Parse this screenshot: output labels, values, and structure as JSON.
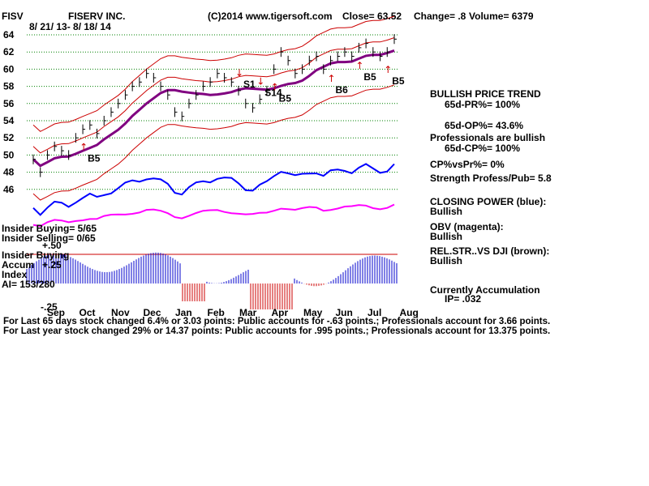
{
  "header": {
    "ticker": "FISV",
    "company": "FISERV INC.",
    "dates": "8/ 21/ 13- 8/ 18/ 14",
    "copyright": "(C)2014 www.tigersoft.com",
    "close": "Close=  63.52",
    "change": "Change= .8",
    "volume": "Volume= 6379"
  },
  "right_panel": {
    "trend_title": "BULLISH PRICE TREND",
    "pr": "65d-PR%= 100%",
    "op": "65d-OP%= 43.6%",
    "pros": "Professionals are bullish",
    "cp": "65d-CP%= 100%",
    "cpvspr": "CP%vsPr%=  0%",
    "strength": "Strength Profess/Pub= 5.8",
    "closing_power": "CLOSING POWER (blue):",
    "closing_power_val": "Bullish",
    "obv": "OBV (magenta):",
    "obv_val": "Bullish",
    "relstr": "REL.STR..VS DJI (brown):",
    "relstr_val": "Bullish",
    "accum": "Currently Accumulation",
    "ip": "IP=  .032"
  },
  "left_labels": {
    "insider_buying": "Insider Buying= 5/65",
    "insider_selling": "Insider Selling= 0/65",
    "insider_buying2": "Insider Buying",
    "accum": "Accum",
    "index": "Index",
    "ai": "AI= 153/280",
    "p50": "+.50",
    "p25": "+.25",
    "m25": "-.25"
  },
  "footer": {
    "line1": "For Last 65 days stock changed  6.4% or  3.03 points:  Public accounts for -.63 points.;  Professionals account for  3.66 points.",
    "line2": "For Last year stock changed  29% or  14.37 points:  Public accounts for  .995 points.;  Professionals account for  13.375 points."
  },
  "colors": {
    "price": "#000000",
    "bands": "#cc0000",
    "ma": "#800080",
    "closing_power": "#0000ff",
    "obv": "#ff00ff",
    "accum_pos": "#0000cc",
    "accum_neg": "#cc0000",
    "grid": "#008000"
  },
  "chart_data": {
    "type": "line",
    "y_ticks": [
      64,
      62,
      60,
      58,
      56,
      54,
      52,
      50,
      48,
      46
    ],
    "ylim": [
      45,
      65
    ],
    "months": [
      "Sep",
      "Oct",
      "Nov",
      "Dec",
      "Jan",
      "Feb",
      "Mar",
      "Apr",
      "May",
      "Jun",
      "Jul",
      "Aug"
    ],
    "price": [
      49.5,
      48.0,
      50.0,
      51.0,
      50.5,
      50.0,
      52.0,
      53.0,
      53.5,
      52.5,
      54.0,
      55.0,
      56.0,
      57.0,
      58.0,
      58.5,
      59.5,
      59.0,
      58.0,
      57.0,
      55.0,
      54.5,
      56.0,
      57.0,
      58.0,
      58.5,
      59.5,
      59.0,
      58.5,
      57.5,
      56.0,
      55.5,
      56.5,
      57.5,
      60.0,
      62.0,
      61.0,
      59.5,
      60.0,
      61.0,
      61.5,
      60.0,
      61.0,
      61.5,
      62.0,
      61.5,
      62.5,
      63.0,
      62.0,
      61.5,
      62.0,
      63.5
    ],
    "signals": [
      {
        "label": "B5",
        "dir": "up",
        "index": 7
      },
      {
        "label": "S1",
        "dir": "down",
        "index": 29
      },
      {
        "label": "S14",
        "dir": "down",
        "index": 32
      },
      {
        "label": "B5",
        "dir": "up",
        "index": 34
      },
      {
        "label": "B6",
        "dir": "up",
        "index": 42
      },
      {
        "label": "B5",
        "dir": "up",
        "index": 46
      },
      {
        "label": "B5",
        "dir": "up",
        "index": 50
      }
    ]
  }
}
